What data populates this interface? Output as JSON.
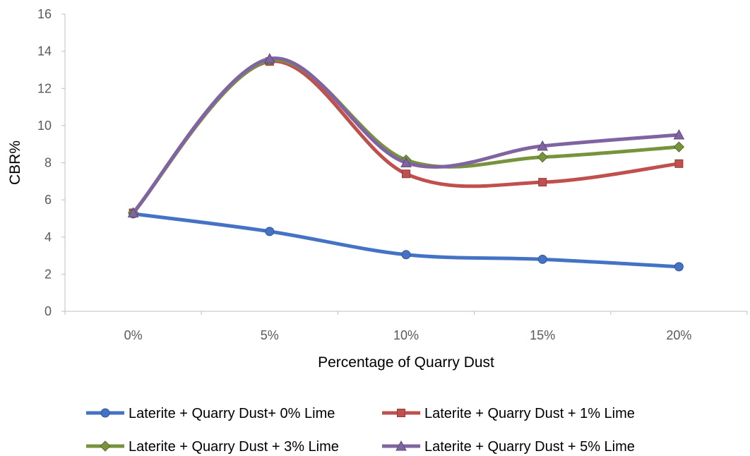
{
  "chart_data": {
    "type": "line",
    "title": "",
    "xlabel": "Percentage of Quarry Dust",
    "ylabel": "CBR%",
    "categories": [
      "0%",
      "5%",
      "10%",
      "15%",
      "20%"
    ],
    "ylim": [
      0,
      16
    ],
    "yticks": [
      0,
      2,
      4,
      6,
      8,
      10,
      12,
      14,
      16
    ],
    "grid": false,
    "smooth": true,
    "legend_position": "bottom",
    "series": [
      {
        "name": "Laterite + Quarry Dust+ 0% Lime",
        "values": [
          5.25,
          4.3,
          3.05,
          2.8,
          2.4
        ],
        "color": "#4472C4",
        "marker": "circle"
      },
      {
        "name": "Laterite + Quarry Dust + 1% Lime",
        "values": [
          5.3,
          13.45,
          7.4,
          6.95,
          7.95
        ],
        "color": "#C0504D",
        "marker": "square"
      },
      {
        "name": "Laterite + Quarry Dust + 3% Lime",
        "values": [
          5.3,
          13.5,
          8.15,
          8.3,
          8.85
        ],
        "color": "#77933C",
        "marker": "diamond"
      },
      {
        "name": "Laterite + Quarry Dust + 5% Lime",
        "values": [
          5.3,
          13.6,
          8.0,
          8.9,
          9.5
        ],
        "color": "#8064A2",
        "marker": "triangle"
      }
    ]
  }
}
